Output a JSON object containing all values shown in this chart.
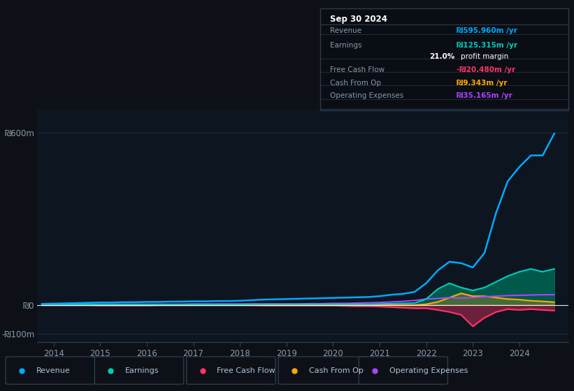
{
  "bg_color": "#0d1117",
  "plot_bg_color": "#0d1520",
  "grid_color": "#1e2d3d",
  "text_color": "#8899aa",
  "title_color": "#ccddee",
  "years": [
    2013.75,
    2014.0,
    2014.25,
    2014.5,
    2014.75,
    2015.0,
    2015.25,
    2015.5,
    2015.75,
    2016.0,
    2016.25,
    2016.5,
    2016.75,
    2017.0,
    2017.25,
    2017.5,
    2017.75,
    2018.0,
    2018.25,
    2018.5,
    2018.75,
    2019.0,
    2019.25,
    2019.5,
    2019.75,
    2020.0,
    2020.25,
    2020.5,
    2020.75,
    2021.0,
    2021.25,
    2021.5,
    2021.75,
    2022.0,
    2022.25,
    2022.5,
    2022.75,
    2023.0,
    2023.25,
    2023.5,
    2023.75,
    2024.0,
    2024.25,
    2024.5,
    2024.75
  ],
  "revenue": [
    3,
    4,
    5,
    6,
    7,
    8,
    8,
    9,
    9,
    10,
    10,
    11,
    11,
    12,
    12,
    13,
    13,
    14,
    16,
    18,
    19,
    20,
    21,
    22,
    23,
    24,
    25,
    26,
    27,
    30,
    35,
    38,
    45,
    75,
    120,
    150,
    145,
    130,
    180,
    320,
    430,
    480,
    520,
    520,
    596
  ],
  "earnings": [
    1,
    1,
    1,
    1,
    1,
    1,
    1,
    1,
    1,
    1,
    1,
    1,
    1,
    1,
    1,
    1,
    1,
    1,
    2,
    2,
    2,
    2,
    2,
    2,
    2,
    2,
    2,
    2,
    2,
    3,
    4,
    5,
    6,
    20,
    55,
    75,
    60,
    50,
    60,
    80,
    100,
    115,
    125,
    115,
    125
  ],
  "free_cash_flow": [
    -2,
    -2,
    -2,
    -2,
    -2,
    -3,
    -3,
    -3,
    -3,
    -3,
    -2,
    -2,
    -2,
    -2,
    -2,
    -2,
    -2,
    -2,
    -2,
    -3,
    -3,
    -3,
    -3,
    -3,
    -3,
    -3,
    -4,
    -5,
    -5,
    -6,
    -8,
    -10,
    -12,
    -12,
    -18,
    -25,
    -35,
    -75,
    -45,
    -25,
    -15,
    -18,
    -15,
    -18,
    -20
  ],
  "cash_from_op": [
    -1,
    -1,
    -1,
    -1,
    -1,
    -1,
    -1,
    -1,
    -1,
    -1,
    -1,
    -1,
    -1,
    -1,
    -1,
    -1,
    -1,
    -1,
    -1,
    -1,
    -1,
    -1,
    -1,
    -1,
    -1,
    -1,
    -1,
    -1,
    -1,
    -1,
    -1,
    -1,
    -1,
    2,
    10,
    25,
    40,
    30,
    30,
    25,
    20,
    18,
    14,
    12,
    9
  ],
  "operating_expenses": [
    2,
    2,
    2,
    2,
    2,
    2,
    2,
    2,
    2,
    2,
    2,
    2,
    2,
    3,
    3,
    3,
    3,
    3,
    3,
    3,
    3,
    3,
    3,
    4,
    4,
    5,
    5,
    6,
    7,
    8,
    10,
    12,
    15,
    20,
    22,
    25,
    23,
    25,
    28,
    30,
    32,
    33,
    34,
    35,
    35
  ],
  "revenue_color": "#00aaff",
  "earnings_color": "#00ccbb",
  "earnings_fill_color": "#006655",
  "free_cash_flow_color": "#ff3366",
  "cash_from_op_color": "#ffaa00",
  "operating_expenses_color": "#aa44ff",
  "ylim_min": -130,
  "ylim_max": 680,
  "yticks": [
    -100,
    0,
    600
  ],
  "ytick_labels": [
    "-₪100m",
    "₪0",
    "₪600m"
  ],
  "info_box": {
    "title": "Sep 30 2024",
    "rows": [
      {
        "label": "Revenue",
        "value": "₪595.960m /yr",
        "value_color": "#00aaff"
      },
      {
        "label": "Earnings",
        "value": "₪125.315m /yr",
        "value_color": "#00ccbb"
      },
      {
        "label": "",
        "value": "21.0% profit margin",
        "value_color": "#ffffff"
      },
      {
        "label": "Free Cash Flow",
        "value": "-₪20.480m /yr",
        "value_color": "#ff3366"
      },
      {
        "label": "Cash From Op",
        "value": "₪9.343m /yr",
        "value_color": "#ffaa00"
      },
      {
        "label": "Operating Expenses",
        "value": "₪35.165m /yr",
        "value_color": "#aa44ff"
      }
    ]
  },
  "legend_items": [
    {
      "label": "Revenue",
      "color": "#00aaff"
    },
    {
      "label": "Earnings",
      "color": "#00ccbb"
    },
    {
      "label": "Free Cash Flow",
      "color": "#ff3366"
    },
    {
      "label": "Cash From Op",
      "color": "#ffaa00"
    },
    {
      "label": "Operating Expenses",
      "color": "#aa44ff"
    }
  ]
}
